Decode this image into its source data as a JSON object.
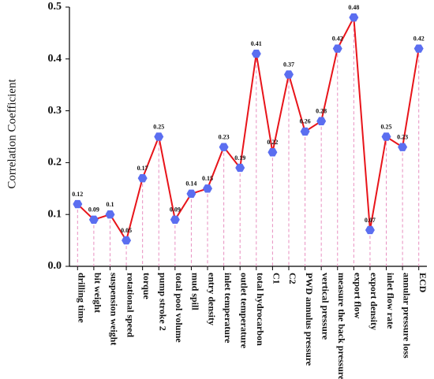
{
  "chart_data": {
    "type": "line",
    "y_label": "Correlation Coefficient",
    "categories": [
      "drilling time",
      "bit weight",
      "suspension weight",
      "rotational speed",
      "torque",
      "pump stroke 2",
      "total pool volume",
      "mud spill",
      "entry density",
      "inlet temperature",
      "outlet temperature",
      "total hydrocarbon",
      "C1",
      "C2",
      "PWD annulus pressure",
      "vertical pressure",
      "measure the back pressure",
      "export flow",
      "export density",
      "inlet flow rate",
      "annular pressure loss",
      "ECD"
    ],
    "values": [
      0.12,
      0.09,
      0.1,
      0.05,
      0.17,
      0.25,
      0.09,
      0.14,
      0.15,
      0.23,
      0.19,
      0.41,
      0.22,
      0.37,
      0.26,
      0.28,
      0.42,
      0.48,
      0.07,
      0.25,
      0.23,
      0.42
    ],
    "color": "#e8141a",
    "marker_color": "#5b6ef0",
    "drop_line_color": "#e88fc0",
    "ylim": [
      0,
      0.5
    ],
    "yticks": [
      {
        "value": 0,
        "label": "0.0"
      },
      0.1,
      0.2,
      0.3,
      0.4,
      0.5
    ]
  }
}
